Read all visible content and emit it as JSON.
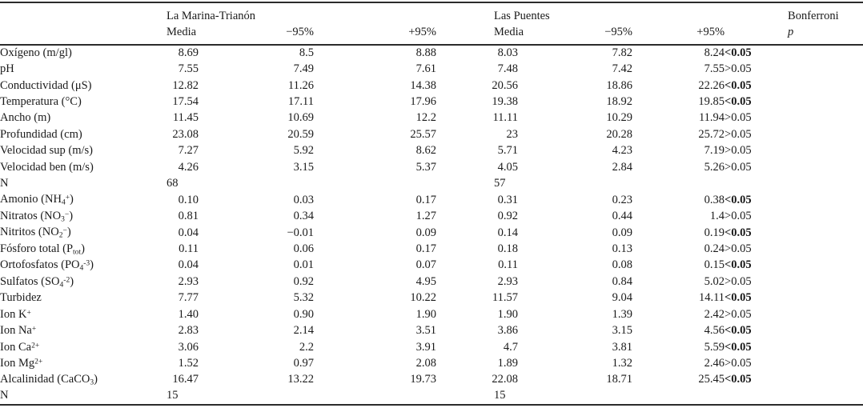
{
  "colors": {
    "text": "#1a1a1a",
    "background": "#ffffff",
    "rule": "#2b2b2b"
  },
  "table": {
    "site1_name": "La Marina-Trianón",
    "site2_name": "Las Puentes",
    "bonferroni_label": "Bonferroni",
    "col_headers": [
      "Media",
      "−95%",
      "+95%",
      "Media",
      "−95%",
      "+95%",
      "p"
    ],
    "rows": [
      {
        "label": [
          [
            "Oxígeno (m/gl)"
          ]
        ],
        "values": [
          "8.69",
          "8.5",
          "8.88",
          "8.03",
          "7.82",
          "8.24"
        ],
        "p": "<0.05",
        "p_bold": true,
        "n_row": false
      },
      {
        "label": [
          [
            "pH"
          ]
        ],
        "values": [
          "7.55",
          "7.49",
          "7.61",
          "7.48",
          "7.42",
          "7.55"
        ],
        "p": ">0.05",
        "p_bold": false,
        "n_row": false
      },
      {
        "label": [
          [
            "Conductividad (μS)"
          ]
        ],
        "values": [
          "12.82",
          "11.26",
          "14.38",
          "20.56",
          "18.86",
          "22.26"
        ],
        "p": "<0.05",
        "p_bold": true,
        "n_row": false
      },
      {
        "label": [
          [
            "Temperatura (°C)"
          ]
        ],
        "values": [
          "17.54",
          "17.11",
          "17.96",
          "19.38",
          "18.92",
          "19.85"
        ],
        "p": "<0.05",
        "p_bold": true,
        "n_row": false
      },
      {
        "label": [
          [
            "Ancho (m)"
          ]
        ],
        "values": [
          "11.45",
          "10.69",
          "12.2",
          "11.11",
          "10.29",
          "11.94"
        ],
        "p": ">0.05",
        "p_bold": false,
        "n_row": false
      },
      {
        "label": [
          [
            "Profundidad (cm)"
          ]
        ],
        "values": [
          "23.08",
          "20.59",
          "25.57",
          "23",
          "20.28",
          "25.72"
        ],
        "p": ">0.05",
        "p_bold": false,
        "n_row": false
      },
      {
        "label": [
          [
            "Velocidad sup (m/s)"
          ]
        ],
        "values": [
          "7.27",
          "5.92",
          "8.62",
          "5.71",
          "4.23",
          "7.19"
        ],
        "p": ">0.05",
        "p_bold": false,
        "n_row": false
      },
      {
        "label": [
          [
            "Velocidad ben (m/s)"
          ]
        ],
        "values": [
          "4.26",
          "3.15",
          "5.37",
          "4.05",
          "2.84",
          "5.26"
        ],
        "p": ">0.05",
        "p_bold": false,
        "n_row": false
      },
      {
        "label": [
          [
            "N"
          ]
        ],
        "values": [
          "68",
          "",
          "",
          "57",
          "",
          ""
        ],
        "p": "",
        "p_bold": false,
        "n_row": true
      },
      {
        "label": [
          [
            "Amonio (NH"
          ],
          [
            "4",
            "sub"
          ],
          [
            "+",
            "sup"
          ],
          [
            ")"
          ]
        ],
        "values": [
          "0.10",
          "0.03",
          "0.17",
          "0.31",
          "0.23",
          "0.38"
        ],
        "p": "<0.05",
        "p_bold": true,
        "n_row": false
      },
      {
        "label": [
          [
            "Nitratos (NO"
          ],
          [
            "3",
            "sub"
          ],
          [
            "−",
            "sup"
          ],
          [
            ")"
          ]
        ],
        "values": [
          "0.81",
          "0.34",
          "1.27",
          "0.92",
          "0.44",
          "1.4"
        ],
        "p": ">0.05",
        "p_bold": false,
        "n_row": false
      },
      {
        "label": [
          [
            "Nitritos (NO"
          ],
          [
            "2",
            "sub"
          ],
          [
            "−",
            "sup"
          ],
          [
            ")"
          ]
        ],
        "values": [
          "0.04",
          "−0.01",
          "0.09",
          "0.14",
          "0.09",
          "0.19"
        ],
        "p": "<0.05",
        "p_bold": true,
        "n_row": false
      },
      {
        "label": [
          [
            "Fósforo total (P"
          ],
          [
            "tot",
            "sub"
          ],
          [
            ")"
          ]
        ],
        "values": [
          "0.11",
          "0.06",
          "0.17",
          "0.18",
          "0.13",
          "0.24"
        ],
        "p": ">0.05",
        "p_bold": false,
        "n_row": false
      },
      {
        "label": [
          [
            "Ortofosfatos (PO"
          ],
          [
            "4",
            "sub"
          ],
          [
            "-3",
            "sup"
          ],
          [
            ")"
          ]
        ],
        "values": [
          "0.04",
          "0.01",
          "0.07",
          "0.11",
          "0.08",
          "0.15"
        ],
        "p": "<0.05",
        "p_bold": true,
        "n_row": false
      },
      {
        "label": [
          [
            "Sulfatos (SO"
          ],
          [
            "4",
            "sub"
          ],
          [
            "-2",
            "sup"
          ],
          [
            ")"
          ]
        ],
        "values": [
          "2.93",
          "0.92",
          "4.95",
          "2.93",
          "0.84",
          "5.02"
        ],
        "p": ">0.05",
        "p_bold": false,
        "n_row": false
      },
      {
        "label": [
          [
            "Turbidez"
          ]
        ],
        "values": [
          "7.77",
          "5.32",
          "10.22",
          "11.57",
          "9.04",
          "14.11"
        ],
        "p": "<0.05",
        "p_bold": true,
        "n_row": false
      },
      {
        "label": [
          [
            "Ion K"
          ],
          [
            "+",
            "sup"
          ]
        ],
        "values": [
          "1.40",
          "0.90",
          "1.90",
          "1.90",
          "1.39",
          "2.42"
        ],
        "p": ">0.05",
        "p_bold": false,
        "n_row": false
      },
      {
        "label": [
          [
            "Ion Na"
          ],
          [
            "+",
            "sup"
          ]
        ],
        "values": [
          "2.83",
          "2.14",
          "3.51",
          "3.86",
          "3.15",
          "4.56"
        ],
        "p": "<0.05",
        "p_bold": true,
        "n_row": false
      },
      {
        "label": [
          [
            "Ion Ca"
          ],
          [
            "2+",
            "sup"
          ]
        ],
        "values": [
          "3.06",
          "2.2",
          "3.91",
          "4.7",
          "3.81",
          "5.59"
        ],
        "p": "<0.05",
        "p_bold": true,
        "n_row": false
      },
      {
        "label": [
          [
            "Ion Mg"
          ],
          [
            "2+",
            "sup"
          ]
        ],
        "values": [
          "1.52",
          "0.97",
          "2.08",
          "1.89",
          "1.32",
          "2.46"
        ],
        "p": ">0.05",
        "p_bold": false,
        "n_row": false
      },
      {
        "label": [
          [
            "Alcalinidad (CaCO"
          ],
          [
            "3",
            "sub"
          ],
          [
            ")"
          ]
        ],
        "values": [
          "16.47",
          "13.22",
          "19.73",
          "22.08",
          "18.71",
          "25.45"
        ],
        "p": "<0.05",
        "p_bold": true,
        "n_row": false
      },
      {
        "label": [
          [
            "N"
          ]
        ],
        "values": [
          "15",
          "",
          "",
          "15",
          "",
          ""
        ],
        "p": "",
        "p_bold": false,
        "n_row": true
      }
    ]
  }
}
